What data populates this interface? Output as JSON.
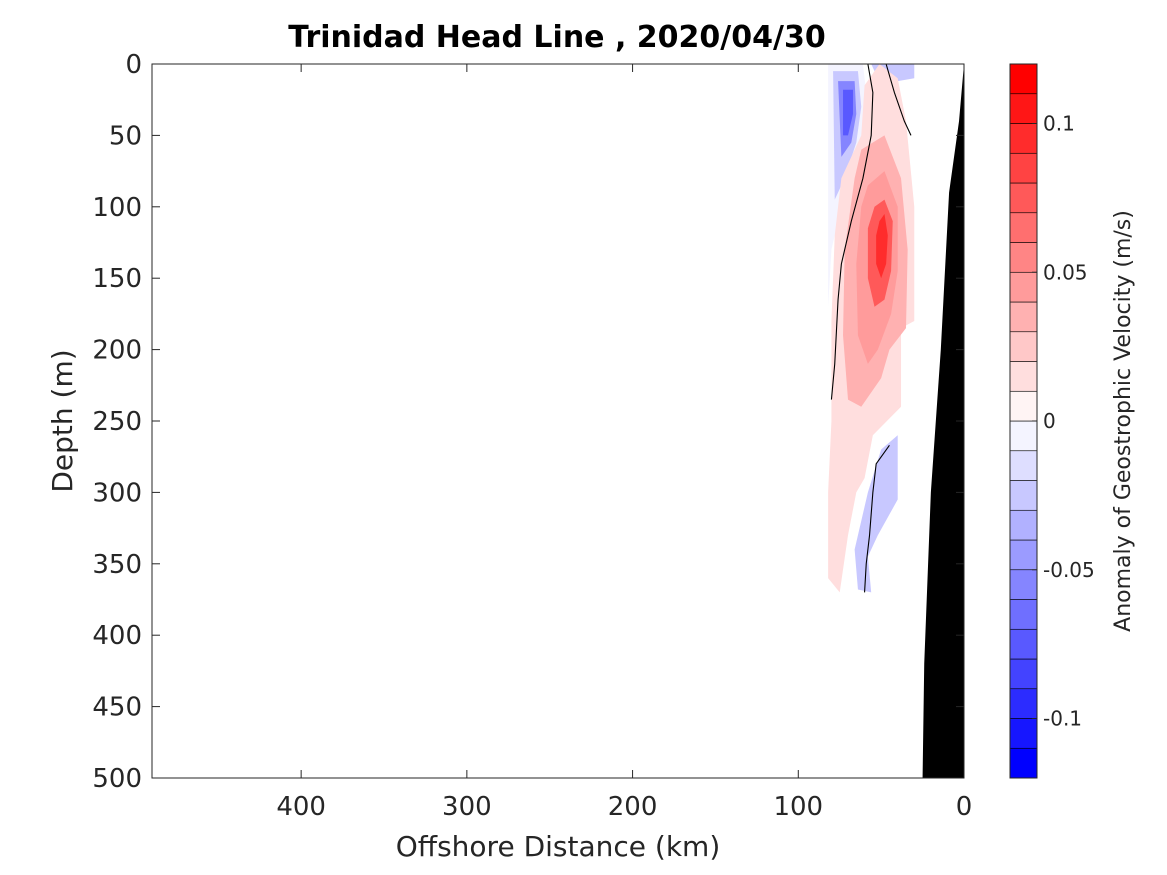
{
  "chart_data": {
    "type": "heatmap",
    "title": "Trinidad Head Line , 2020/04/30",
    "xlabel": "Offshore Distance (km)",
    "ylabel": "Depth (m)",
    "xlim": [
      490,
      0
    ],
    "ylim": [
      0,
      500
    ],
    "x_reversed": true,
    "y_reversed": true,
    "xticks": [
      400,
      300,
      200,
      100,
      0
    ],
    "yticks": [
      0,
      50,
      100,
      150,
      200,
      250,
      300,
      350,
      400,
      450,
      500
    ],
    "colorbar": {
      "label": "Anomaly of Geostrophic Velocity (m/s)",
      "clim": [
        -0.12,
        0.12
      ],
      "levels": 24,
      "ticks": [
        0.1,
        0.05,
        0,
        -0.05,
        -0.1
      ],
      "tick_labels": [
        "0.1",
        "0.05",
        "0",
        "-0.05",
        "-0.1"
      ],
      "negative_color": "#0000ff",
      "positive_color": "#ff0000",
      "mid_color": "#ffffff"
    },
    "anomaly_regions": [
      {
        "value": -0.01,
        "points": [
          [
            82,
            0
          ],
          [
            61,
            0
          ],
          [
            58,
            30
          ],
          [
            61,
            60
          ],
          [
            73,
            95
          ],
          [
            80,
            130
          ],
          [
            82,
            170
          ],
          [
            82,
            0
          ]
        ]
      },
      {
        "value": -0.03,
        "points": [
          [
            79,
            5
          ],
          [
            64,
            5
          ],
          [
            62,
            30
          ],
          [
            65,
            55
          ],
          [
            72,
            80
          ],
          [
            78,
            95
          ],
          [
            79,
            5
          ]
        ]
      },
      {
        "value": -0.05,
        "points": [
          [
            76,
            12
          ],
          [
            66,
            12
          ],
          [
            65,
            35
          ],
          [
            68,
            55
          ],
          [
            74,
            65
          ],
          [
            76,
            12
          ]
        ]
      },
      {
        "value": -0.07,
        "points": [
          [
            73,
            18
          ],
          [
            67,
            18
          ],
          [
            67,
            35
          ],
          [
            70,
            50
          ],
          [
            73,
            50
          ],
          [
            73,
            18
          ]
        ]
      },
      {
        "value": -0.03,
        "points": [
          [
            56,
            0
          ],
          [
            30,
            0
          ],
          [
            30,
            10
          ],
          [
            40,
            12
          ],
          [
            52,
            10
          ],
          [
            56,
            0
          ]
        ]
      },
      {
        "value": -0.02,
        "points": [
          [
            50,
            270
          ],
          [
            40,
            260
          ],
          [
            40,
            305
          ],
          [
            52,
            330
          ],
          [
            58,
            345
          ],
          [
            56,
            370
          ],
          [
            64,
            368
          ],
          [
            66,
            340
          ],
          [
            58,
            300
          ],
          [
            50,
            270
          ]
        ]
      },
      {
        "value": 0.01,
        "points": [
          [
            60,
            15
          ],
          [
            51,
            0
          ],
          [
            40,
            10
          ],
          [
            35,
            40
          ],
          [
            30,
            100
          ],
          [
            30,
            180
          ],
          [
            38,
            185
          ],
          [
            38,
            240
          ],
          [
            55,
            260
          ],
          [
            60,
            290
          ],
          [
            65,
            300
          ],
          [
            70,
            330
          ],
          [
            75,
            370
          ],
          [
            82,
            360
          ],
          [
            82,
            300
          ],
          [
            80,
            250
          ],
          [
            80,
            180
          ],
          [
            78,
            120
          ],
          [
            74,
            80
          ],
          [
            62,
            50
          ],
          [
            60,
            15
          ]
        ]
      },
      {
        "value": 0.03,
        "points": [
          [
            62,
            60
          ],
          [
            48,
            50
          ],
          [
            38,
            80
          ],
          [
            34,
            130
          ],
          [
            35,
            185
          ],
          [
            45,
            200
          ],
          [
            50,
            220
          ],
          [
            62,
            240
          ],
          [
            70,
            235
          ],
          [
            73,
            190
          ],
          [
            72,
            130
          ],
          [
            66,
            80
          ],
          [
            62,
            60
          ]
        ]
      },
      {
        "value": 0.05,
        "points": [
          [
            58,
            85
          ],
          [
            48,
            75
          ],
          [
            40,
            100
          ],
          [
            40,
            145
          ],
          [
            44,
            175
          ],
          [
            52,
            200
          ],
          [
            58,
            210
          ],
          [
            64,
            190
          ],
          [
            65,
            140
          ],
          [
            62,
            100
          ],
          [
            58,
            85
          ]
        ]
      },
      {
        "value": 0.07,
        "points": [
          [
            54,
            100
          ],
          [
            48,
            95
          ],
          [
            43,
            110
          ],
          [
            44,
            145
          ],
          [
            48,
            165
          ],
          [
            54,
            170
          ],
          [
            58,
            150
          ],
          [
            58,
            115
          ],
          [
            54,
            100
          ]
        ]
      },
      {
        "value": 0.09,
        "points": [
          [
            51,
            110
          ],
          [
            48,
            105
          ],
          [
            46,
            120
          ],
          [
            47,
            140
          ],
          [
            50,
            150
          ],
          [
            53,
            140
          ],
          [
            53,
            120
          ],
          [
            51,
            110
          ]
        ]
      }
    ],
    "zero_contours": [
      [
        [
          58,
          0
        ],
        [
          55,
          20
        ],
        [
          56,
          50
        ],
        [
          61,
          80
        ],
        [
          68,
          110
        ],
        [
          74,
          140
        ],
        [
          76,
          165
        ],
        [
          78,
          210
        ],
        [
          80,
          235
        ]
      ],
      [
        [
          47,
          0
        ],
        [
          42,
          20
        ],
        [
          36,
          40
        ],
        [
          32,
          50
        ]
      ],
      [
        [
          45,
          267
        ],
        [
          53,
          280
        ],
        [
          55,
          300
        ],
        [
          57,
          330
        ],
        [
          59,
          350
        ],
        [
          60,
          370
        ]
      ]
    ],
    "bathymetry": [
      [
        0,
        0
      ],
      [
        3,
        40
      ],
      [
        9,
        90
      ],
      [
        14,
        200
      ],
      [
        20,
        300
      ],
      [
        24,
        420
      ],
      [
        25,
        500
      ],
      [
        0,
        500
      ]
    ]
  }
}
